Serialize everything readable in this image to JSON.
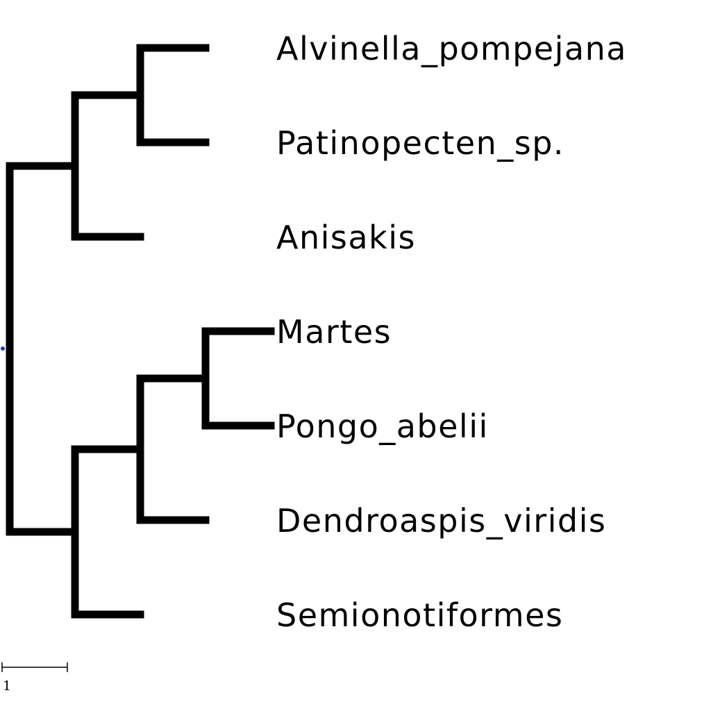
{
  "tree": {
    "root": {
      "children": [
        {
          "children": [
            {
              "children": [
                {
                  "label": "Alvinella_pompejana",
                  "length": 1
                },
                {
                  "label": "Patinopecten_sp.",
                  "length": 1
                }
              ],
              "length": 1
            },
            {
              "label": "Anisakis",
              "length": 1
            }
          ],
          "length": 1
        },
        {
          "children": [
            {
              "children": [
                {
                  "children": [
                    {
                      "label": "Martes",
                      "length": 1
                    },
                    {
                      "label": "Pongo_abelii",
                      "length": 1
                    }
                  ],
                  "length": 1
                },
                {
                  "label": "Dendroaspis_viridis",
                  "length": 1
                }
              ],
              "length": 1
            },
            {
              "label": "Semionotiformes",
              "length": 1
            }
          ],
          "length": 1
        }
      ]
    }
  },
  "scale_bar": {
    "value": 1,
    "label": "1"
  },
  "colors": {
    "branch": "#000000",
    "root_marker": "#1f3fa8",
    "label": "#000000"
  }
}
